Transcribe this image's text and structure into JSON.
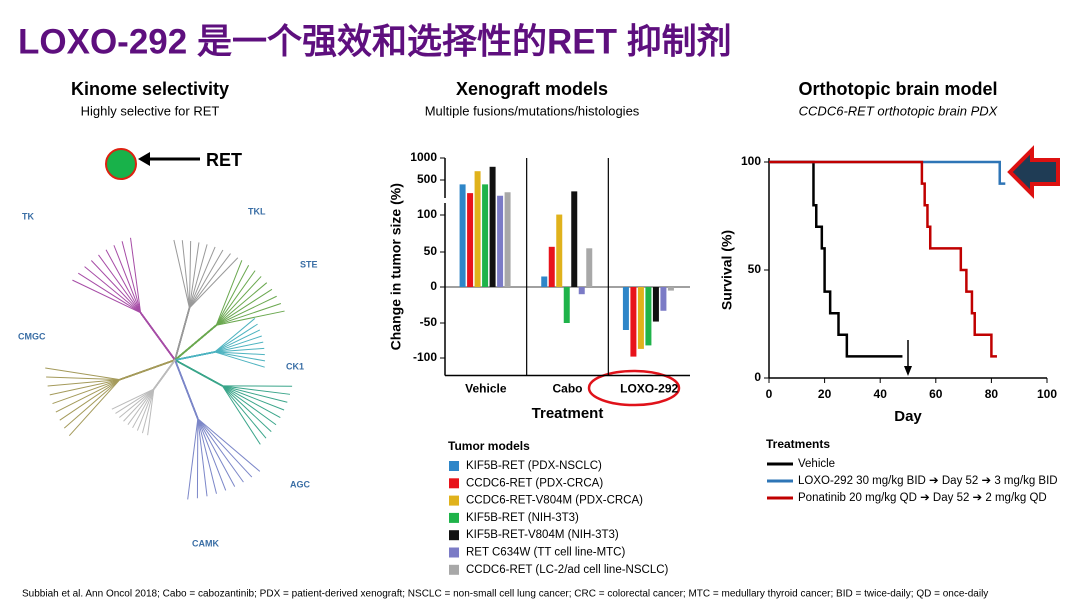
{
  "title": "LOXO-292 是一个强效和选择性的RET 抑制剂",
  "kinome": {
    "title": "Kinome selectivity",
    "subtitle": "Highly selective for RET",
    "labels": [
      "RET",
      "TK",
      "TKL",
      "STE",
      "CK1",
      "CMGC",
      "AGC",
      "CAMK"
    ]
  },
  "chart_data": [
    {
      "type": "bar",
      "title": "Xenograft models",
      "subtitle": "Multiple fusions/mutations/histologies",
      "categories": [
        "Vehicle",
        "Cabo",
        "LOXO-292"
      ],
      "xlabel": "Treatment",
      "ylabel": "Change in tumor size (%)",
      "ylim": [
        -125,
        1000
      ],
      "yticks": [
        -100,
        -50,
        0,
        50,
        100,
        500,
        1000
      ],
      "legend_title": "Tumor models",
      "series": [
        {
          "name": "KIF5B-RET (PDX-NSCLC)",
          "color": "#2e86c8",
          "values": [
            450,
            15,
            -60
          ]
        },
        {
          "name": "CCDC6-RET (PDX-CRCA)",
          "color": "#e8131b",
          "values": [
            350,
            57,
            -98
          ]
        },
        {
          "name": "CCDC6-RET-V804M (PDX-CRCA)",
          "color": "#e0b21c",
          "values": [
            700,
            105,
            -87
          ]
        },
        {
          "name": "KIF5B-RET (NIH-3T3)",
          "color": "#1fb34a",
          "values": [
            450,
            -50,
            -82
          ]
        },
        {
          "name": "KIF5B-RET-V804M (NIH-3T3)",
          "color": "#111111",
          "values": [
            800,
            370,
            -48
          ]
        },
        {
          "name": "RET C634W (TT cell line-MTC)",
          "color": "#7b7bc6",
          "values": [
            320,
            -10,
            -33
          ]
        },
        {
          "name": "CCDC6-RET (LC-2/ad cell line-NSCLC)",
          "color": "#a8a8a8",
          "values": [
            360,
            55,
            -5
          ]
        }
      ]
    },
    {
      "type": "line",
      "title": "Orthotopic brain model",
      "subtitle": "CCDC6-RET orthotopic brain PDX",
      "xlabel": "Day",
      "ylabel": "Survival (%)",
      "xlim": [
        0,
        100
      ],
      "xticks": [
        0,
        20,
        40,
        60,
        80,
        100
      ],
      "ylim": [
        0,
        100
      ],
      "yticks": [
        0,
        50,
        100
      ],
      "legend_title": "Treatments",
      "series": [
        {
          "name": "Vehicle",
          "color": "#000000",
          "x": [
            0,
            16,
            16,
            17,
            17,
            19,
            19,
            20,
            20,
            22,
            22,
            25,
            25,
            28,
            28,
            48
          ],
          "values": [
            100,
            100,
            80,
            80,
            70,
            70,
            60,
            60,
            40,
            40,
            30,
            30,
            20,
            20,
            10,
            10
          ]
        },
        {
          "name": "LOXO-292 30 mg/kg BID ➔ Day 52 ➔ 3 mg/kg BID",
          "color": "#2e75b6",
          "x": [
            0,
            83,
            83,
            85
          ],
          "values": [
            100,
            100,
            90,
            90
          ]
        },
        {
          "name": "Ponatinib 20 mg/kg QD ➔ Day 52 ➔ 2 mg/kg QD",
          "color": "#c00000",
          "x": [
            0,
            55,
            55,
            56,
            56,
            57,
            57,
            58,
            58,
            69,
            69,
            71,
            71,
            73,
            73,
            74,
            74,
            80,
            80,
            82
          ],
          "values": [
            100,
            100,
            90,
            90,
            80,
            80,
            70,
            70,
            60,
            60,
            50,
            50,
            40,
            40,
            30,
            30,
            20,
            20,
            10,
            10
          ]
        }
      ]
    }
  ],
  "footnote": "Subbiah et al. Ann Oncol 2018; Cabo = cabozantinib; PDX = patient-derived xenograft; NSCLC = non-small cell lung cancer; CRC = colorectal cancer; MTC = medullary thyroid cancer; BID = twice-daily; QD = once-daily"
}
